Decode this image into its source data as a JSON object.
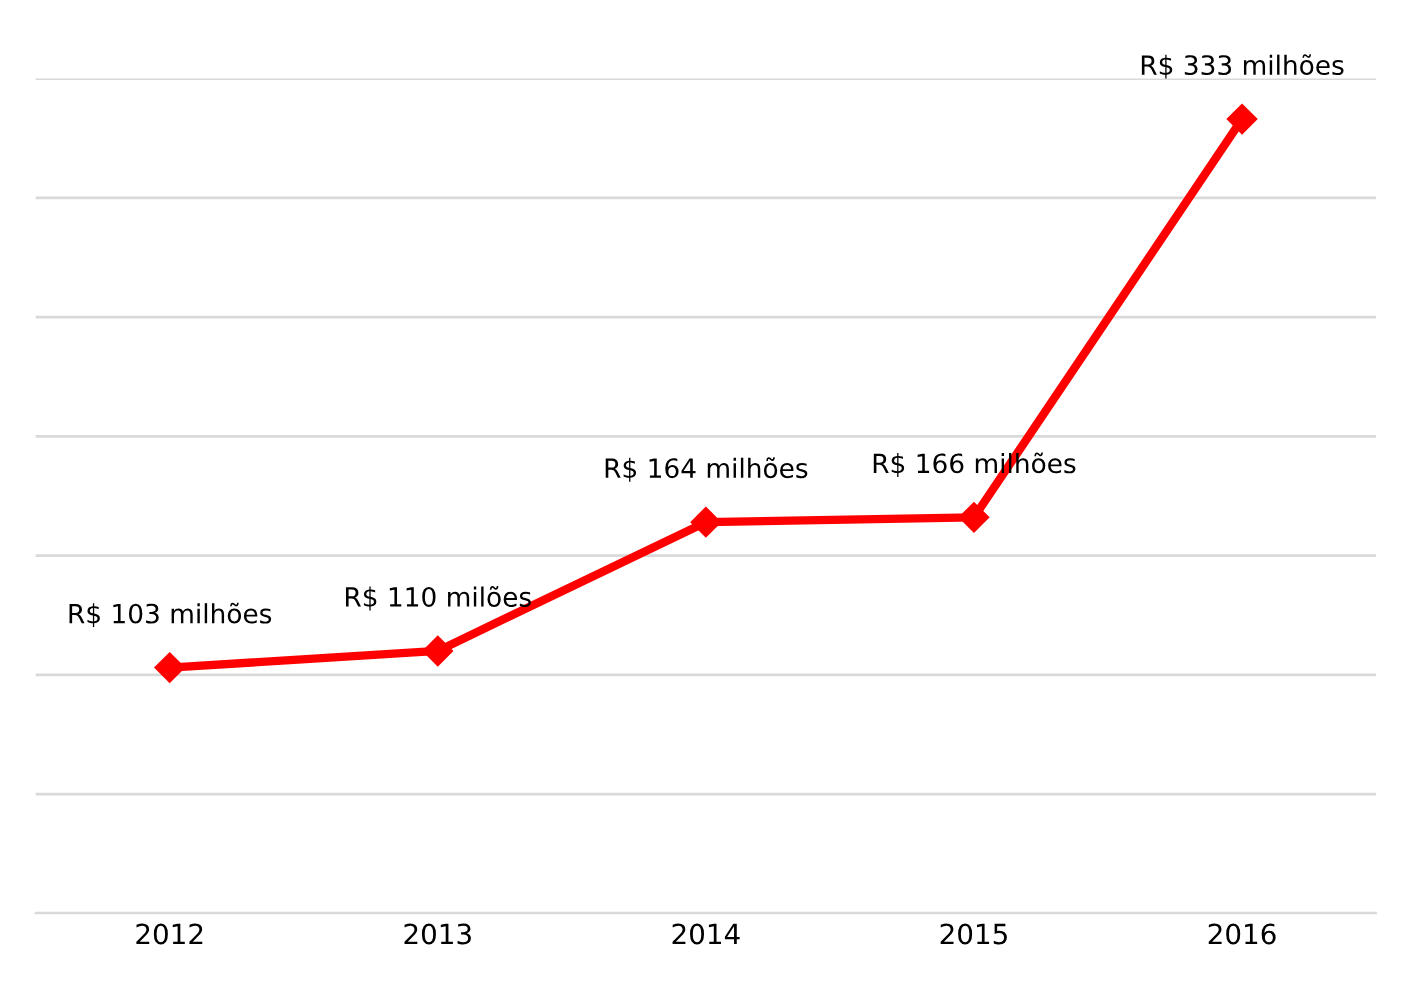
{
  "chart_data": {
    "type": "line",
    "categories": [
      "2012",
      "2013",
      "2014",
      "2015",
      "2016"
    ],
    "series": [
      {
        "color": "#ff0000",
        "values": [
          103,
          110,
          164,
          166,
          333
        ],
        "value_labels": [
          "R$ 103 milhões",
          "R$ 110 milões",
          "R$ 164 milhões",
          "R$ 166 milhões",
          "R$ 333 milhões"
        ]
      }
    ],
    "ylim": [
      0,
      350
    ],
    "yticks": [
      {
        "value": 0,
        "label": null
      },
      {
        "value": 50,
        "label": null
      },
      {
        "value": 100,
        "label": null
      },
      {
        "value": 150,
        "label": null
      },
      {
        "value": 200,
        "label": null
      },
      {
        "value": 250,
        "label": null
      },
      {
        "value": 300,
        "label": null
      },
      {
        "value": 350,
        "label": null
      }
    ],
    "tick_labels": "x",
    "grid": "y",
    "marker": "diamond",
    "line_style": "solid",
    "legend": false
  }
}
